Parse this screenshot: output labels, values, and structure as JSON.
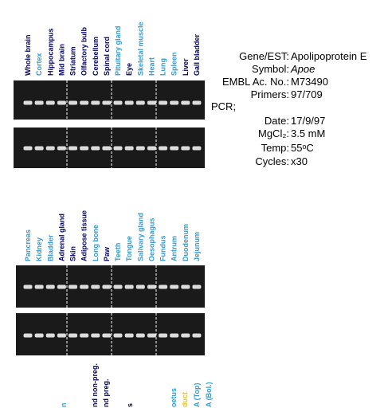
{
  "panel1": {
    "lanes": [
      {
        "label": "Whole brain",
        "color": "#000066"
      },
      {
        "label": "Cortex",
        "color": "#3399cc"
      },
      {
        "label": "Hippocampus",
        "color": "#000066"
      },
      {
        "label": "Mid brain",
        "color": "#000066"
      },
      {
        "label": "Striatum",
        "color": "#000066"
      },
      {
        "label": "Olfactory bulb",
        "color": "#000066"
      },
      {
        "label": "Cerebellum",
        "color": "#000066"
      },
      {
        "label": "Spinal cord",
        "color": "#000066"
      },
      {
        "label": "Pituitary gland",
        "color": "#3399cc"
      },
      {
        "label": "Eye",
        "color": "#000066"
      },
      {
        "label": "Skeletal muscle",
        "color": "#3399cc"
      },
      {
        "label": "Heart",
        "color": "#3399cc"
      },
      {
        "label": "Lung",
        "color": "#3399cc"
      },
      {
        "label": "Spleen",
        "color": "#3399cc"
      },
      {
        "label": "Liver",
        "color": "#000066"
      },
      {
        "label": "Gall bladder",
        "color": "#000066"
      }
    ]
  },
  "panel2": {
    "lanes": [
      {
        "label": "Pancreas",
        "color": "#3399cc"
      },
      {
        "label": "Kidney",
        "color": "#3399cc"
      },
      {
        "label": "Bladder",
        "color": "#3399cc"
      },
      {
        "label": "Adrenal gland",
        "color": "#000066"
      },
      {
        "label": "Skin",
        "color": "#000066"
      },
      {
        "label": "Adipose tissue",
        "color": "#000066"
      },
      {
        "label": "Long bone",
        "color": "#3399cc"
      },
      {
        "label": "Paw",
        "color": "#000066"
      },
      {
        "label": "Teeth",
        "color": "#3399cc"
      },
      {
        "label": "Tongue",
        "color": "#3399cc"
      },
      {
        "label": "Salivary gland",
        "color": "#3399cc"
      },
      {
        "label": "Oesophagus",
        "color": "#3399cc"
      },
      {
        "label": "Fundus",
        "color": "#3399cc"
      },
      {
        "label": "Antrum",
        "color": "#3399cc"
      },
      {
        "label": "Duodenum",
        "color": "#3399cc"
      },
      {
        "label": "Jejunum",
        "color": "#3399cc"
      }
    ]
  },
  "panel3": {
    "lanes": [
      {
        "label": "n",
        "color": "#3399cc"
      },
      {
        "label": "nd non-preg.",
        "color": "#000066"
      },
      {
        "label": "nd preg.",
        "color": "#000066"
      },
      {
        "label": "s",
        "color": "#000066"
      },
      {
        "label": "oetus",
        "color": "#3399cc"
      },
      {
        "label": "duct",
        "color": "#e8c040"
      },
      {
        "label": "A (Top)",
        "color": "#3399cc"
      },
      {
        "label": "A (Bol.)",
        "color": "#3399cc"
      }
    ]
  },
  "info": {
    "gene_label": "Gene/EST:",
    "gene": "Apolipoprotein E",
    "symbol_label": "Symbol:",
    "symbol": "Apoe",
    "embl_label": "EMBL Ac. No.:",
    "embl": "M73490",
    "primers_label": "Primers:",
    "primers": "97/709",
    "pcr": "PCR;",
    "date_label": "Date:",
    "date": "17/9/97",
    "mgcl_label": "MgCl₂:",
    "mgcl": "3.5 mM",
    "temp_label": "Temp:",
    "temp": "55ᵒC",
    "cycles_label": "Cycles:",
    "cycles": "x30"
  }
}
